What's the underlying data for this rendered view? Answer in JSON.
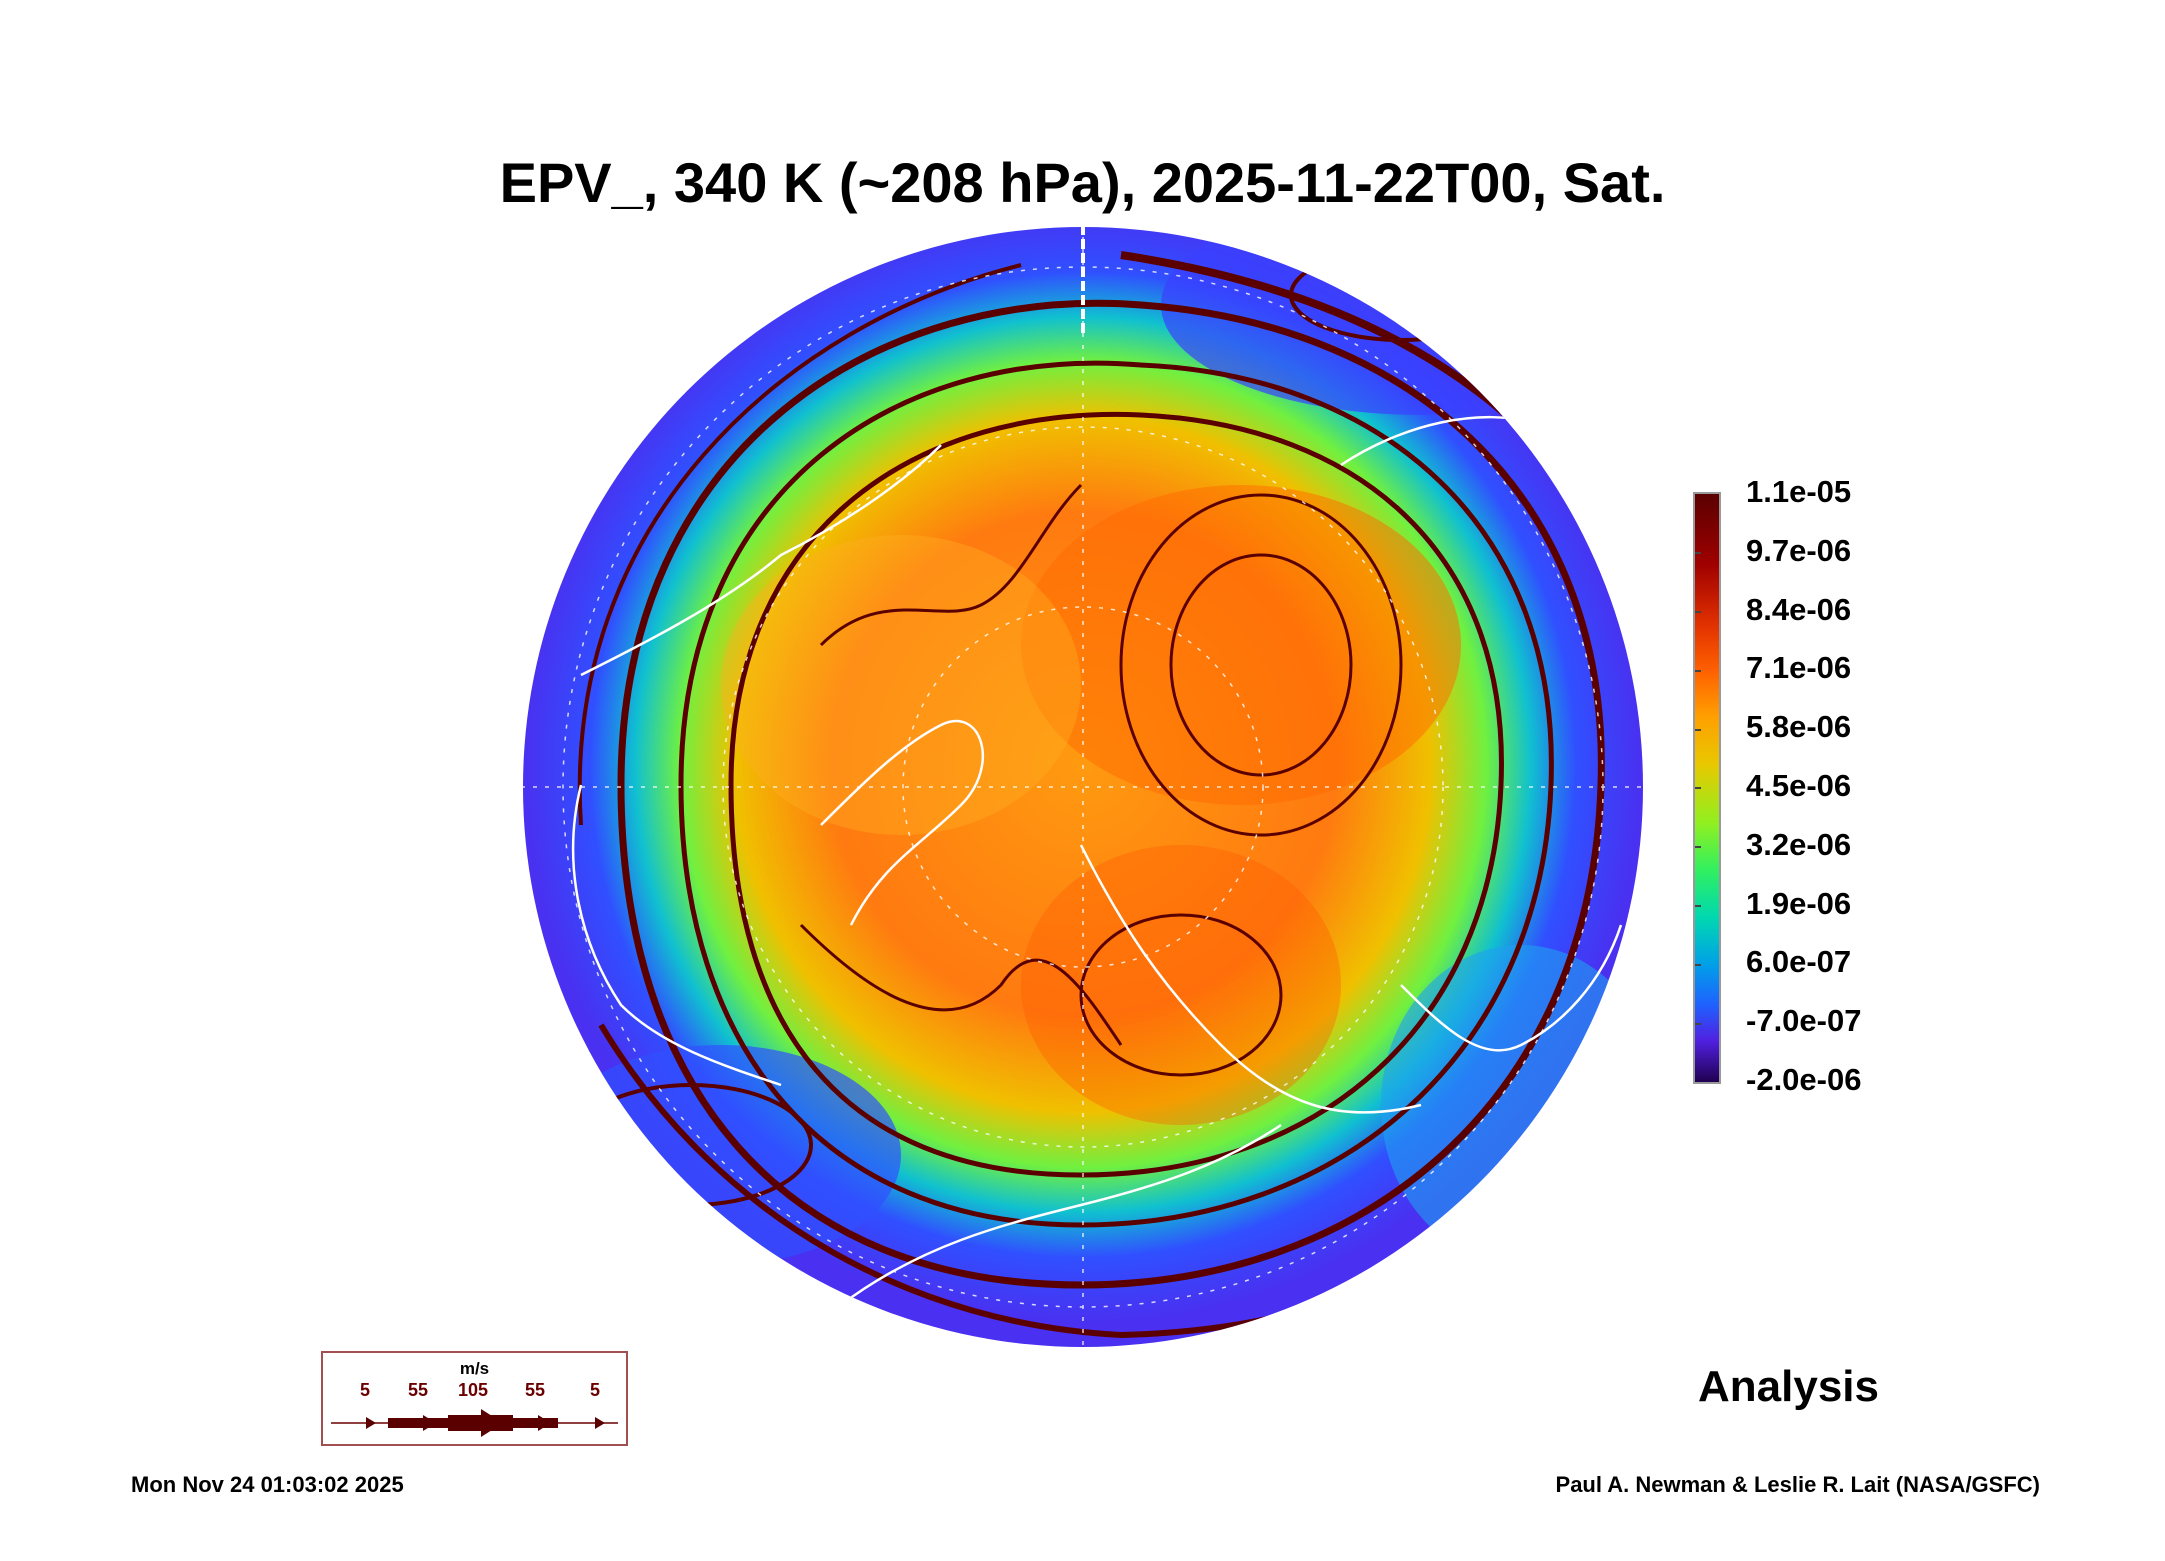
{
  "title": "EPV_, 340 K (~208 hPa), 2025-11-22T00, Sat.",
  "colorbar": {
    "labels": [
      "1.1e-05",
      "9.7e-06",
      "8.4e-06",
      "7.1e-06",
      "5.8e-06",
      "4.5e-06",
      "3.2e-06",
      "1.9e-06",
      "6.0e-07",
      "-7.0e-07",
      "-2.0e-06"
    ]
  },
  "wind_legend": {
    "unit": "m/s",
    "speeds": [
      "5",
      "55",
      "105",
      "55",
      "5"
    ]
  },
  "analysis_label": "Analysis",
  "footer": {
    "timestamp": "Mon Nov 24 01:03:02 2025",
    "credit": "Paul A. Newman & Leslie R. Lait (NASA/GSFC)"
  },
  "colors": {
    "streamline": "#5a0000",
    "coastline": "#ffffff"
  }
}
